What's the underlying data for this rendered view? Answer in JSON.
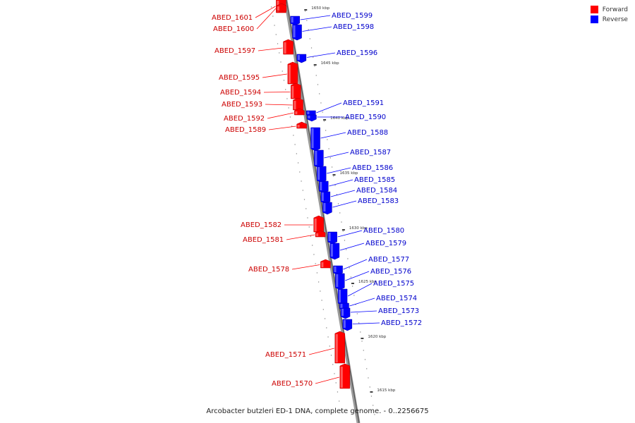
{
  "legend": {
    "forward_label": "Forward",
    "reverse_label": "Reverse",
    "forward_color": "#ff0000",
    "reverse_color": "#0000ff"
  },
  "caption": "Arcobacter butzleri ED-1 DNA, complete genome. - 0..2256675",
  "ticks": [
    "1650 kbp",
    "1645 kbp",
    "1640 kbp",
    "1635 kbp",
    "1630 kbp",
    "1625 kbp",
    "1620 kbp",
    "1615 kbp"
  ],
  "genes": [
    {
      "label": "ABED_1601",
      "strand": "forward"
    },
    {
      "label": "ABED_1600",
      "strand": "forward"
    },
    {
      "label": "ABED_1599",
      "strand": "reverse"
    },
    {
      "label": "ABED_1598",
      "strand": "reverse"
    },
    {
      "label": "ABED_1597",
      "strand": "forward"
    },
    {
      "label": "ABED_1596",
      "strand": "reverse"
    },
    {
      "label": "ABED_1595",
      "strand": "forward"
    },
    {
      "label": "ABED_1594",
      "strand": "forward"
    },
    {
      "label": "ABED_1593",
      "strand": "forward"
    },
    {
      "label": "ABED_1592",
      "strand": "forward"
    },
    {
      "label": "ABED_1591",
      "strand": "reverse"
    },
    {
      "label": "ABED_1590",
      "strand": "reverse"
    },
    {
      "label": "ABED_1589",
      "strand": "forward"
    },
    {
      "label": "ABED_1588",
      "strand": "reverse"
    },
    {
      "label": "ABED_1587",
      "strand": "reverse"
    },
    {
      "label": "ABED_1586",
      "strand": "reverse"
    },
    {
      "label": "ABED_1585",
      "strand": "reverse"
    },
    {
      "label": "ABED_1584",
      "strand": "reverse"
    },
    {
      "label": "ABED_1583",
      "strand": "reverse"
    },
    {
      "label": "ABED_1582",
      "strand": "forward"
    },
    {
      "label": "ABED_1581",
      "strand": "forward"
    },
    {
      "label": "ABED_1580",
      "strand": "reverse"
    },
    {
      "label": "ABED_1579",
      "strand": "reverse"
    },
    {
      "label": "ABED_1578",
      "strand": "forward"
    },
    {
      "label": "ABED_1577",
      "strand": "reverse"
    },
    {
      "label": "ABED_1576",
      "strand": "reverse"
    },
    {
      "label": "ABED_1575",
      "strand": "reverse"
    },
    {
      "label": "ABED_1574",
      "strand": "reverse"
    },
    {
      "label": "ABED_1573",
      "strand": "reverse"
    },
    {
      "label": "ABED_1572",
      "strand": "reverse"
    },
    {
      "label": "ABED_1571",
      "strand": "forward"
    },
    {
      "label": "ABED_1570",
      "strand": "forward"
    }
  ]
}
